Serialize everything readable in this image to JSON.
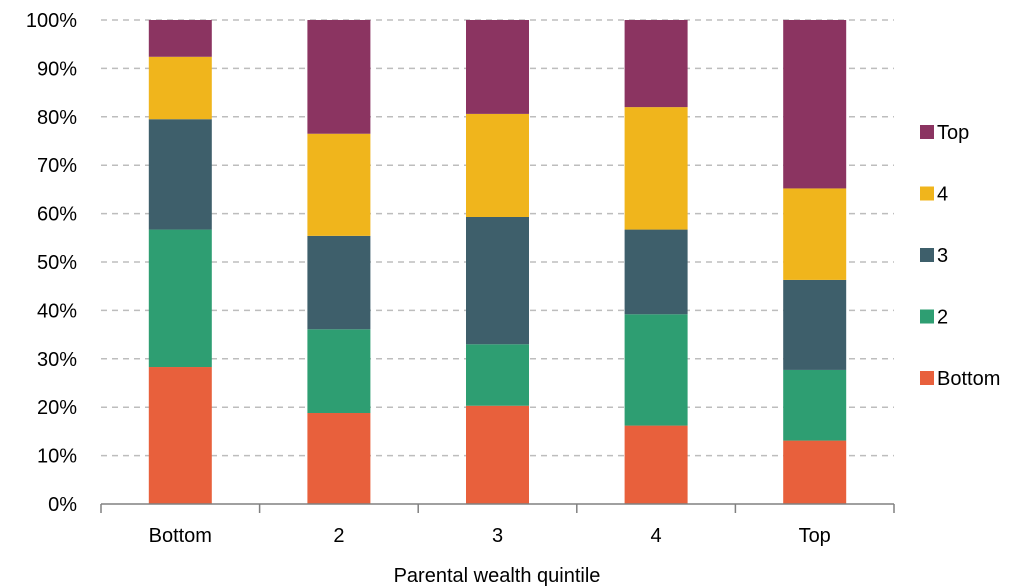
{
  "chart_data": {
    "type": "bar",
    "stacked": true,
    "title": "",
    "xlabel": "Parental wealth quintile",
    "ylabel": "",
    "categories": [
      "Bottom",
      "2",
      "3",
      "4",
      "Top"
    ],
    "ylim": [
      0,
      100
    ],
    "yticks": [
      "0%",
      "10%",
      "20%",
      "30%",
      "40%",
      "50%",
      "60%",
      "70%",
      "80%",
      "90%",
      "100%"
    ],
    "grid": true,
    "legend_position": "right",
    "series": [
      {
        "name": "Bottom",
        "color": "#E8603C",
        "values": [
          28.3,
          18.8,
          20.3,
          16.2,
          13.1
        ]
      },
      {
        "name": "2",
        "color": "#2E9E72",
        "values": [
          28.4,
          17.3,
          12.7,
          23.0,
          14.6
        ]
      },
      {
        "name": "3",
        "color": "#3E5F6B",
        "values": [
          22.8,
          19.3,
          26.3,
          17.5,
          18.6
        ]
      },
      {
        "name": "4",
        "color": "#F0B51C",
        "values": [
          12.9,
          21.1,
          21.3,
          25.3,
          18.9
        ]
      },
      {
        "name": "Top",
        "color": "#8B3461",
        "values": [
          7.6,
          23.5,
          19.4,
          18.0,
          34.8
        ]
      }
    ]
  }
}
